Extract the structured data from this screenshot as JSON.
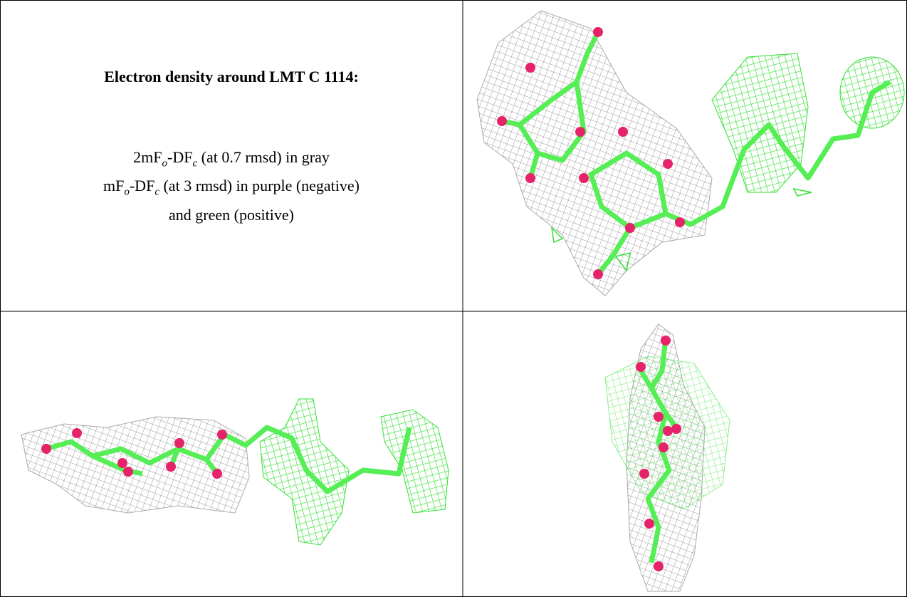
{
  "figure_table": {
    "title": "Electron density around LMT C 1114:",
    "legend_lines": [
      [
        {
          "text": "2mF"
        },
        {
          "text": "o",
          "sub": true
        },
        {
          "text": "-DF"
        },
        {
          "text": "c",
          "sub": true
        },
        {
          "text": " (at 0.7 rmsd) in gray"
        }
      ],
      [
        {
          "text": "mF"
        },
        {
          "text": "o",
          "sub": true
        },
        {
          "text": "-DF"
        },
        {
          "text": "c",
          "sub": true
        },
        {
          "text": " (at 3 rmsd) in purple (negative)"
        }
      ],
      [
        {
          "text": "and green (positive)"
        }
      ]
    ]
  }
}
